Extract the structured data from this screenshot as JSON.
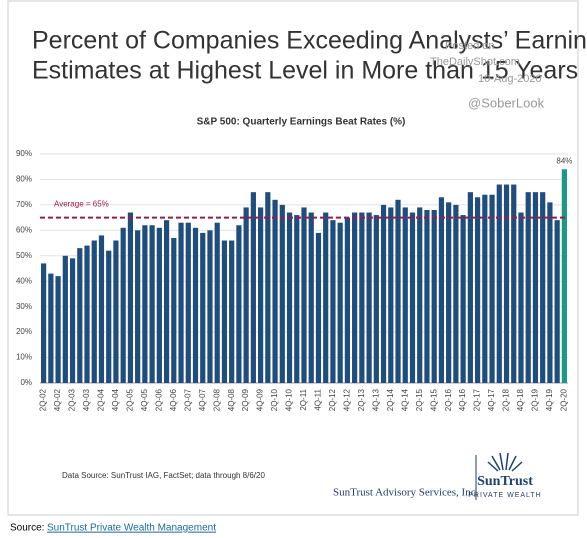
{
  "chart_data": {
    "type": "bar",
    "title": [
      "Percent of Companies Exceeding Analysts’ Earnings",
      "Estimates at Highest Level in More than 15 Years"
    ],
    "watermark": [
      "Posted on",
      "TheDailyShot.com",
      "10-Aug-2020",
      "@SoberLook"
    ],
    "subtitle": "S&P 500: Quarterly Earnings Beat Rates (%)",
    "categories": [
      "2Q-02",
      null,
      "4Q-02",
      null,
      "2Q-03",
      null,
      "4Q-03",
      null,
      "2Q-04",
      null,
      "4Q-04",
      null,
      "2Q-05",
      null,
      "4Q-05",
      null,
      "2Q-06",
      null,
      "4Q-06",
      null,
      "2Q-07",
      null,
      "4Q-07",
      null,
      "2Q-08",
      null,
      "4Q-08",
      null,
      "2Q-09",
      null,
      "4Q-09",
      null,
      "2Q-10",
      null,
      "4Q-10",
      null,
      "2Q-11",
      null,
      "4Q-11",
      null,
      "2Q-12",
      null,
      "4Q-12",
      null,
      "2Q-13",
      null,
      "4Q-13",
      null,
      "2Q-14",
      null,
      "4Q-14",
      null,
      "2Q-15",
      null,
      "4Q-15",
      null,
      "2Q-16",
      null,
      "4Q-16",
      null,
      "2Q-17",
      null,
      "4Q-17",
      null,
      "2Q-18",
      null,
      "4Q-18",
      null,
      "2Q-19",
      null,
      "4Q-19",
      null,
      "2Q-20"
    ],
    "values": [
      47,
      43,
      42,
      50,
      49,
      53,
      54,
      56,
      58,
      52,
      56,
      61,
      67,
      60,
      62,
      62,
      61,
      64,
      57,
      63,
      63,
      61,
      59,
      60,
      63,
      56,
      56,
      62,
      69,
      75,
      69,
      75,
      72,
      70,
      67,
      66,
      69,
      67,
      59,
      67,
      64,
      63,
      65,
      67,
      67,
      67,
      66,
      70,
      69,
      72,
      69,
      67,
      69,
      68,
      68,
      73,
      71,
      70,
      66,
      75,
      73,
      74,
      74,
      78,
      78,
      78,
      67,
      75,
      75,
      75,
      71,
      64,
      84
    ],
    "value_labels": [
      null,
      null,
      null,
      null,
      null,
      null,
      null,
      null,
      null,
      null,
      null,
      null,
      null,
      null,
      null,
      null,
      null,
      null,
      null,
      null,
      null,
      null,
      null,
      null,
      null,
      null,
      null,
      null,
      null,
      null,
      null,
      null,
      null,
      null,
      null,
      null,
      null,
      null,
      null,
      null,
      null,
      null,
      null,
      null,
      null,
      null,
      null,
      null,
      null,
      null,
      null,
      null,
      null,
      null,
      null,
      null,
      null,
      null,
      null,
      null,
      null,
      null,
      null,
      null,
      null,
      null,
      null,
      null,
      null,
      null,
      null,
      null,
      "84%"
    ],
    "color": "#1f4e7e",
    "highlight_color": "#1a9888",
    "ylim": [
      0,
      90
    ],
    "yticks": [
      {
        "value": 0,
        "label": "0%"
      },
      {
        "value": 10,
        "label": "10%"
      },
      {
        "value": 20,
        "label": "20%"
      },
      {
        "value": 30,
        "label": "30%"
      },
      {
        "value": 40,
        "label": "40%"
      },
      {
        "value": 50,
        "label": "50%"
      },
      {
        "value": 60,
        "label": "60%"
      },
      {
        "value": 70,
        "label": "70%"
      },
      {
        "value": 80,
        "label": "80%"
      },
      {
        "value": 90,
        "label": "90%"
      }
    ],
    "reference_line": {
      "value": 65,
      "label": "Average = 65%",
      "color": "#a0184a"
    },
    "data_source": "Data Source: SunTrust IAG, FactSet; data through 8/6/20",
    "company": "SunTrust Advisory Services, Inc.",
    "logo": [
      "SunTrust",
      "PRIVATE WEALTH"
    ],
    "source_label": "Source:",
    "source_link": "SunTrust Private Wealth Management"
  }
}
